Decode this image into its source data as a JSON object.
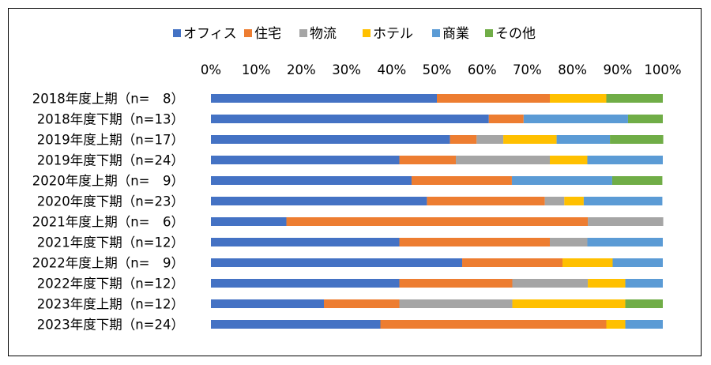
{
  "chart_data": {
    "type": "bar",
    "stacked": true,
    "orientation": "horizontal",
    "normalized_100_percent": true,
    "title": "",
    "xlabel": "",
    "ylabel": "",
    "xlim": [
      0,
      100
    ],
    "x_ticks": [
      "0%",
      "10%",
      "20%",
      "30%",
      "40%",
      "50%",
      "60%",
      "70%",
      "80%",
      "90%",
      "100%"
    ],
    "grid": false,
    "legend_position": "top",
    "categories": [
      "2018年度上期（n=　8）",
      "2018年度下期（n=13）",
      "2019年度上期（n=17）",
      "2019年度下期（n=24）",
      "2020年度上期（n=　9）",
      "2020年度下期（n=23）",
      "2021年度上期（n=　6）",
      "2021年度下期（n=12）",
      "2022年度上期（n=　9）",
      "2022年度下期（n=12）",
      "2023年度上期（n=12）",
      "2023年度下期（n=24）"
    ],
    "series": [
      {
        "name": "オフィス",
        "color": "#4472c4",
        "values": [
          50.0,
          61.5,
          52.9,
          41.7,
          44.4,
          47.8,
          16.7,
          41.7,
          55.6,
          41.7,
          25.0,
          37.5
        ]
      },
      {
        "name": "住宅",
        "color": "#ed7d31",
        "values": [
          25.0,
          7.7,
          5.9,
          12.5,
          22.2,
          26.1,
          66.7,
          33.3,
          22.2,
          25.0,
          16.7,
          50.0
        ]
      },
      {
        "name": "物流",
        "color": "#a5a5a5",
        "values": [
          0,
          0,
          5.9,
          20.8,
          0,
          4.3,
          16.7,
          8.3,
          0,
          16.7,
          25.0,
          0
        ]
      },
      {
        "name": "ホテル",
        "color": "#ffc000",
        "values": [
          12.5,
          0,
          11.8,
          8.3,
          0,
          4.3,
          0,
          0,
          11.1,
          8.3,
          25.0,
          4.2
        ]
      },
      {
        "name": "商業",
        "color": "#5b9bd5",
        "values": [
          0,
          23.1,
          11.8,
          16.7,
          22.2,
          17.4,
          0,
          16.7,
          11.1,
          8.3,
          0,
          8.3
        ]
      },
      {
        "name": "その他",
        "color": "#70ad47",
        "values": [
          12.5,
          7.7,
          11.8,
          0,
          11.1,
          0,
          0,
          0,
          0,
          0,
          8.3,
          0
        ]
      }
    ]
  }
}
